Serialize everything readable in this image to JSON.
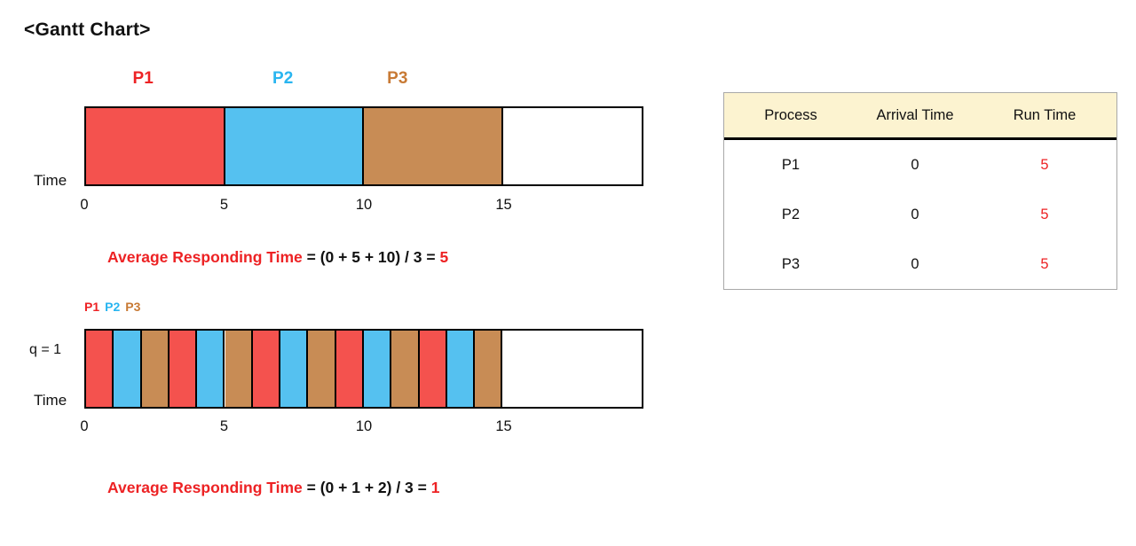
{
  "page": {
    "title": "<Gantt Chart>"
  },
  "colors": {
    "p1_fill": "#f4524e",
    "p2_fill": "#55c1f0",
    "p3_fill": "#c88c55",
    "accent_red": "#ed2224",
    "table_header_bg": "#fcf3d0"
  },
  "chart_data": [
    {
      "type": "gantt",
      "name": "fcfs",
      "total_units": 20,
      "time_label": "Time",
      "label_mode": "centered",
      "process_labels": [
        {
          "text": "P1",
          "color": "#ed2224",
          "center_unit": 2.1
        },
        {
          "text": "P2",
          "color": "#29b5f0",
          "center_unit": 7.1
        },
        {
          "text": "P3",
          "color": "#c87a35",
          "center_unit": 11.2
        }
      ],
      "segments": [
        {
          "process": "P1",
          "start": 0,
          "end": 5,
          "color": "#f4524e"
        },
        {
          "process": "P2",
          "start": 5,
          "end": 10,
          "color": "#55c1f0"
        },
        {
          "process": "P3",
          "start": 10,
          "end": 15,
          "color": "#c88c55"
        }
      ],
      "ticks": [
        {
          "unit": 0,
          "text": "0"
        },
        {
          "unit": 5,
          "text": "5"
        },
        {
          "unit": 10,
          "text": "10"
        },
        {
          "unit": 15,
          "text": "15"
        }
      ],
      "average": {
        "label": "Average Responding Time",
        "formula": " = (0 + 5 + 10) / 3 = ",
        "result": "5"
      }
    },
    {
      "type": "gantt",
      "name": "round-robin",
      "total_units": 20,
      "time_label": "Time",
      "q_label": "q = 1",
      "label_mode": "inline",
      "process_labels": [
        {
          "text": "P1",
          "color": "#ed2224"
        },
        {
          "text": "P2",
          "color": "#29b5f0"
        },
        {
          "text": "P3",
          "color": "#c87a35"
        }
      ],
      "segments": [
        {
          "process": "P1",
          "start": 0,
          "end": 1,
          "color": "#f4524e"
        },
        {
          "process": "P2",
          "start": 1,
          "end": 2,
          "color": "#55c1f0"
        },
        {
          "process": "P3",
          "start": 2,
          "end": 3,
          "color": "#c88c55"
        },
        {
          "process": "P1",
          "start": 3,
          "end": 4,
          "color": "#f4524e"
        },
        {
          "process": "P2",
          "start": 4,
          "end": 5,
          "color": "#55c1f0"
        },
        {
          "process": "P3",
          "start": 5,
          "end": 6,
          "color": "#c88c55"
        },
        {
          "process": "P1",
          "start": 6,
          "end": 7,
          "color": "#f4524e"
        },
        {
          "process": "P2",
          "start": 7,
          "end": 8,
          "color": "#55c1f0"
        },
        {
          "process": "P3",
          "start": 8,
          "end": 9,
          "color": "#c88c55"
        },
        {
          "process": "P1",
          "start": 9,
          "end": 10,
          "color": "#f4524e"
        },
        {
          "process": "P2",
          "start": 10,
          "end": 11,
          "color": "#55c1f0"
        },
        {
          "process": "P3",
          "start": 11,
          "end": 12,
          "color": "#c88c55"
        },
        {
          "process": "P1",
          "start": 12,
          "end": 13,
          "color": "#f4524e"
        },
        {
          "process": "P2",
          "start": 13,
          "end": 14,
          "color": "#55c1f0"
        },
        {
          "process": "P3",
          "start": 14,
          "end": 15,
          "color": "#c88c55"
        }
      ],
      "ticks": [
        {
          "unit": 0,
          "text": "0"
        },
        {
          "unit": 5,
          "text": "5"
        },
        {
          "unit": 10,
          "text": "10"
        },
        {
          "unit": 15,
          "text": "15"
        }
      ],
      "average": {
        "label": "Average Responding Time",
        "formula": " = (0 + 1 + 2) / 3 = ",
        "result": "1"
      }
    }
  ],
  "process_table": {
    "headers": [
      "Process",
      "Arrival Time",
      "Run Time"
    ],
    "rows": [
      {
        "process": "P1",
        "arrival": "0",
        "run": "5"
      },
      {
        "process": "P2",
        "arrival": "0",
        "run": "5"
      },
      {
        "process": "P3",
        "arrival": "0",
        "run": "5"
      }
    ]
  }
}
